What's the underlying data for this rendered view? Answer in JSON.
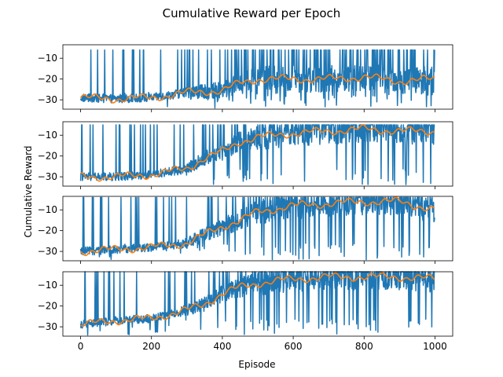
{
  "chart_data": {
    "type": "line",
    "title": "Cumulative Reward per Epoch",
    "xlabel": "Episode",
    "ylabel": "Cumulative Reward",
    "xlim": [
      -50,
      1050
    ],
    "x_ticks": [
      0,
      200,
      400,
      600,
      800,
      1000
    ],
    "x_tick_labels": [
      "0",
      "200",
      "400",
      "600",
      "800",
      "1000"
    ],
    "y_ticks": [
      -30,
      -20,
      -10
    ],
    "y_tick_labels": [
      "−30",
      "−20",
      "−10"
    ],
    "grid": false,
    "n_points": 1000,
    "colors": {
      "raw": "#1f77b4",
      "smoothed": "#ff7f0e"
    },
    "panels": [
      {
        "ylim": [
          -34.5,
          -3.5
        ],
        "series": [
          {
            "x": [
              0,
              100,
              200,
              300,
              400,
              450,
              500,
              600,
              700,
              800,
              900,
              1000
            ],
            "values": [
              -29,
              -29.5,
              -29,
              -26.5,
              -25.5,
              -22,
              -20,
              -20,
              -20,
              -19,
              -21,
              -20
            ]
          }
        ],
        "raw_ceiling": -6,
        "raw_floor": -34
      },
      {
        "ylim": [
          -34.5,
          -3.5
        ],
        "series": [
          {
            "x": [
              0,
              100,
              200,
              300,
              350,
              400,
              450,
              500,
              600,
              700,
              800,
              900,
              1000
            ],
            "values": [
              -30,
              -30,
              -29,
              -26,
              -21,
              -18,
              -13,
              -11,
              -9,
              -8,
              -7,
              -8,
              -8
            ]
          }
        ],
        "raw_ceiling": -5,
        "raw_floor": -34
      },
      {
        "ylim": [
          -34.5,
          -3.5
        ],
        "series": [
          {
            "x": [
              0,
              100,
              200,
              300,
              350,
              400,
              450,
              500,
              600,
              700,
              800,
              900,
              1000
            ],
            "values": [
              -30,
              -29,
              -28,
              -26,
              -22,
              -18,
              -15,
              -11,
              -8,
              -7,
              -6,
              -6,
              -10
            ]
          }
        ],
        "raw_ceiling": -4,
        "raw_floor": -34
      },
      {
        "ylim": [
          -34.5,
          -3.5
        ],
        "series": [
          {
            "x": [
              0,
              100,
              200,
              300,
              350,
              400,
              450,
              500,
              600,
              700,
              800,
              900,
              1000
            ],
            "values": [
              -29,
              -27,
              -26,
              -22,
              -19,
              -14,
              -11,
              -9,
              -7,
              -6,
              -6,
              -6,
              -7
            ]
          }
        ],
        "raw_ceiling": -3.5,
        "raw_floor": -34
      }
    ]
  }
}
